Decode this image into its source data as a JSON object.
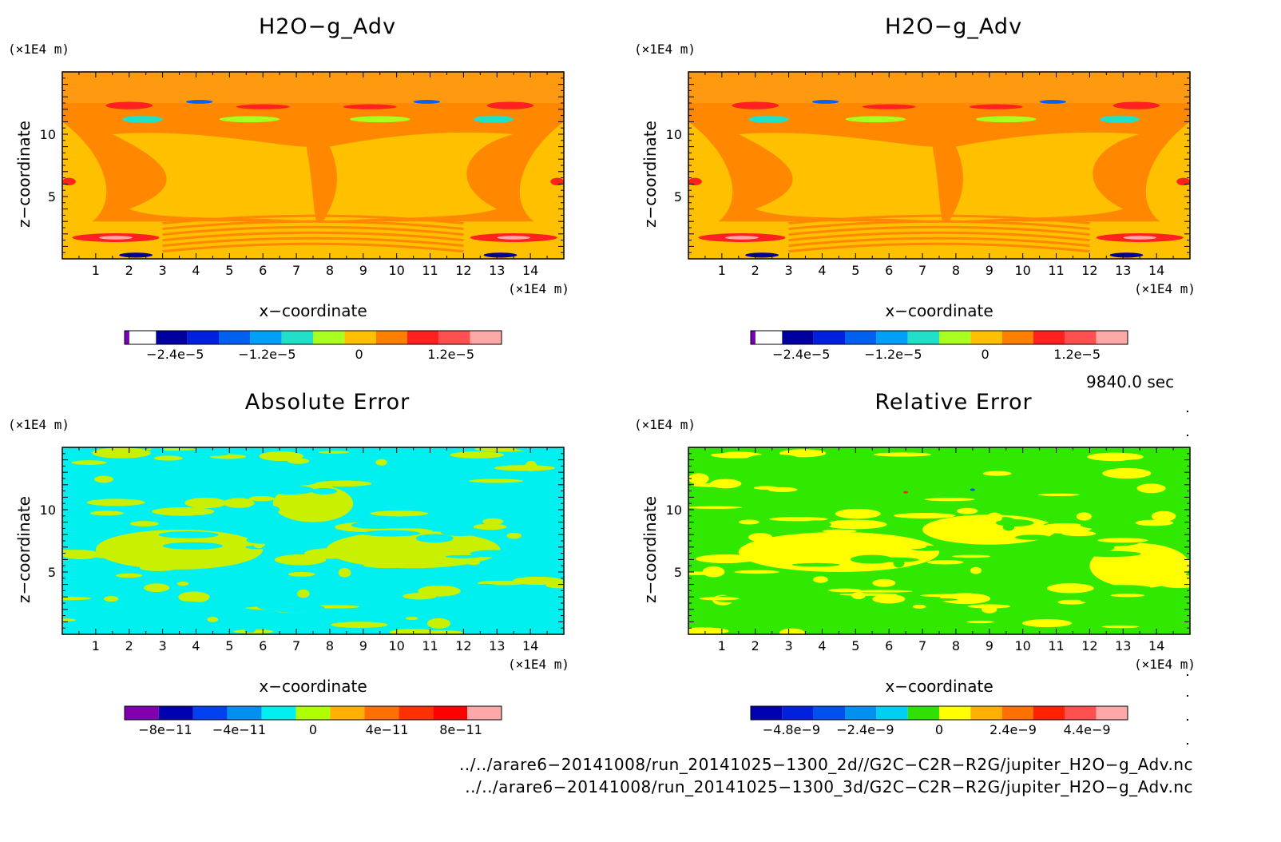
{
  "panels": [
    {
      "id": "top-left",
      "title": "H2O−g_Adv",
      "yunit": "(×1E4 m)",
      "xunit": "(×1E4 m)",
      "xlabel": "x−coordinate",
      "ylabel": "z−coordinate",
      "xticks": [
        "1",
        "2",
        "3",
        "4",
        "5",
        "6",
        "7",
        "8",
        "9",
        "10",
        "11",
        "12",
        "13",
        "14"
      ],
      "yticks": [
        "5",
        "10"
      ],
      "colorbar": {
        "colors": [
          "#7a00b8",
          "#0000a0",
          "#0020e0",
          "#0060f0",
          "#00a0f8",
          "#20e0c8",
          "#a8ff20",
          "#ffc000",
          "#ff8000",
          "#ff2020",
          "#ff5050",
          "#ffa8a8"
        ],
        "labels": [
          "−2.4e−5",
          "−1.2e−5",
          "0",
          "1.2e−5"
        ]
      }
    },
    {
      "id": "top-right",
      "title": "H2O−g_Adv",
      "yunit": "(×1E4 m)",
      "xunit": "(×1E4 m)",
      "xlabel": "x−coordinate",
      "ylabel": "z−coordinate",
      "xticks": [
        "1",
        "2",
        "3",
        "4",
        "5",
        "6",
        "7",
        "8",
        "9",
        "10",
        "11",
        "12",
        "13",
        "14"
      ],
      "yticks": [
        "5",
        "10"
      ],
      "colorbar": {
        "colors": [
          "#7a00b8",
          "#0000a0",
          "#0020e0",
          "#0060f0",
          "#00a0f8",
          "#20e0c8",
          "#a8ff20",
          "#ffc000",
          "#ff8000",
          "#ff2020",
          "#ff5050",
          "#ffa8a8"
        ],
        "labels": [
          "−2.4e−5",
          "−1.2e−5",
          "0",
          "1.2e−5"
        ]
      }
    },
    {
      "id": "bottom-left",
      "title": "Absolute Error",
      "yunit": "(×1E4 m)",
      "xunit": "(×1E4 m)",
      "xlabel": "x−coordinate",
      "ylabel": "z−coordinate",
      "xticks": [
        "1",
        "2",
        "3",
        "4",
        "5",
        "6",
        "7",
        "8",
        "9",
        "10",
        "11",
        "12",
        "13",
        "14"
      ],
      "yticks": [
        "5",
        "10"
      ],
      "colorbar": {
        "colors": [
          "#8000b0",
          "#0000b0",
          "#0040f0",
          "#0090f0",
          "#00f0f0",
          "#b0ff00",
          "#ffb000",
          "#ff7000",
          "#ff3000",
          "#ff0000",
          "#ffa8a8"
        ],
        "labels": [
          "−8e−11",
          "−4e−11",
          "0",
          "4e−11",
          "8e−11"
        ]
      }
    },
    {
      "id": "bottom-right",
      "title": "Relative Error",
      "yunit": "(×1E4 m)",
      "xunit": "(×1E4 m)",
      "xlabel": "x−coordinate",
      "ylabel": "z−coordinate",
      "xticks": [
        "1",
        "2",
        "3",
        "4",
        "5",
        "6",
        "7",
        "8",
        "9",
        "10",
        "11",
        "12",
        "13",
        "14"
      ],
      "yticks": [
        "5",
        "10"
      ],
      "colorbar": {
        "colors": [
          "#0000b0",
          "#0020e0",
          "#0050f0",
          "#0090f0",
          "#00d0f0",
          "#30e000",
          "#ffff00",
          "#ffb000",
          "#ff7000",
          "#ff2000",
          "#ff5050",
          "#ffa8a8"
        ],
        "labels": [
          "−4.8e−9",
          "−2.4e−9",
          "0",
          "2.4e−9",
          "4.4e−9"
        ]
      }
    }
  ],
  "time_label": "9840.0 sec",
  "footer": [
    "../../arare6−20141008/run_20141025−1300_2d//G2C−C2R−R2G/jupiter_H2O−g_Adv.nc",
    "../../arare6−20141008/run_20141025−1300_3d/G2C−C2R−R2G/jupiter_H2O−g_Adv.nc"
  ],
  "chart_data": [
    {
      "type": "heatmap",
      "title": "H2O−g_Adv",
      "xlabel": "x−coordinate",
      "ylabel": "z−coordinate",
      "x_unit": "(×1E4 m)",
      "y_unit": "(×1E4 m)",
      "xlim": [
        0,
        15
      ],
      "ylim": [
        0,
        15
      ],
      "colorbar_ticks": [
        -2.4e-05,
        -1.2e-05,
        0,
        1.2e-05
      ],
      "dominant_values": "near 0 (orange/yellow), localized negative (blue) and positive (red) eddies near top and bottom"
    },
    {
      "type": "heatmap",
      "title": "H2O−g_Adv",
      "xlabel": "x−coordinate",
      "ylabel": "z−coordinate",
      "x_unit": "(×1E4 m)",
      "y_unit": "(×1E4 m)",
      "xlim": [
        0,
        15
      ],
      "ylim": [
        0,
        15
      ],
      "colorbar_ticks": [
        -2.4e-05,
        -1.2e-05,
        0,
        1.2e-05
      ]
    },
    {
      "type": "heatmap",
      "title": "Absolute Error",
      "xlabel": "x−coordinate",
      "ylabel": "z−coordinate",
      "x_unit": "(×1E4 m)",
      "y_unit": "(×1E4 m)",
      "xlim": [
        0,
        15
      ],
      "ylim": [
        0,
        15
      ],
      "colorbar_ticks": [
        -8e-11,
        -4e-11,
        0,
        4e-11,
        8e-11
      ]
    },
    {
      "type": "heatmap",
      "title": "Relative Error",
      "xlabel": "x−coordinate",
      "ylabel": "z−coordinate",
      "x_unit": "(×1E4 m)",
      "y_unit": "(×1E4 m)",
      "xlim": [
        0,
        15
      ],
      "ylim": [
        0,
        15
      ],
      "colorbar_ticks": [
        -4.8e-09,
        -2.4e-09,
        0,
        2.4e-09,
        4.4e-09
      ]
    }
  ]
}
